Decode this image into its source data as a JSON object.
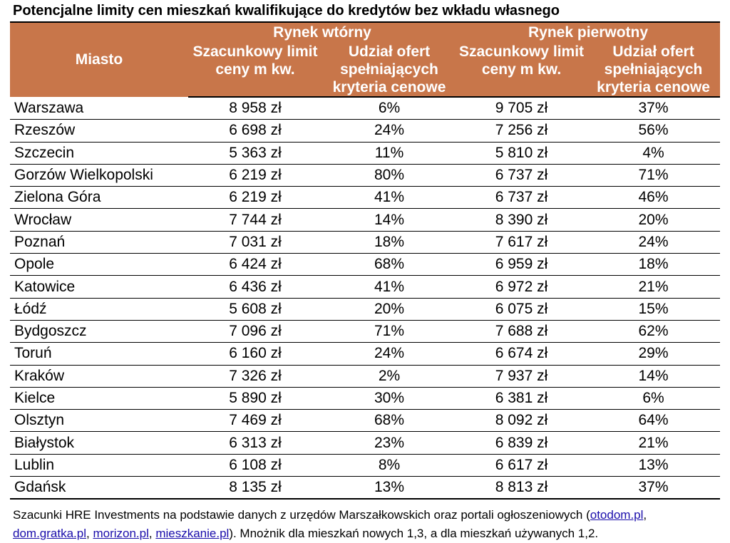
{
  "title": "Potencjalne limity cen mieszkań kwalifikujące do kredytów bez wkładu własnego",
  "header": {
    "city": "Miasto",
    "secondary_market": "Rynek wtórny",
    "primary_market": "Rynek pierwotny",
    "price_limit": "Szacunkowy limit ceny m kw.",
    "share_offers": "Udział ofert spełniających kryteria cenowe"
  },
  "chart_data": {
    "type": "table",
    "title": "Potencjalne limity cen mieszkań kwalifikujące do kredytów bez wkładu własnego",
    "columns": [
      "Miasto",
      "Rynek wtórny – Szacunkowy limit ceny m kw.",
      "Rynek wtórny – Udział ofert spełniających kryteria cenowe",
      "Rynek pierwotny – Szacunkowy limit ceny m kw.",
      "Rynek pierwotny – Udział ofert spełniających kryteria cenowe"
    ],
    "rows": [
      [
        "Warszawa",
        "8 958 zł",
        "6%",
        "9 705 zł",
        "37%"
      ],
      [
        "Rzeszów",
        "6 698 zł",
        "24%",
        "7 256 zł",
        "56%"
      ],
      [
        "Szczecin",
        "5 363 zł",
        "11%",
        "5 810 zł",
        "4%"
      ],
      [
        "Gorzów Wielkopolski",
        "6 219 zł",
        "80%",
        "6 737 zł",
        "71%"
      ],
      [
        "Zielona Góra",
        "6 219 zł",
        "41%",
        "6 737 zł",
        "46%"
      ],
      [
        "Wrocław",
        "7 744 zł",
        "14%",
        "8 390 zł",
        "20%"
      ],
      [
        "Poznań",
        "7 031 zł",
        "18%",
        "7 617 zł",
        "24%"
      ],
      [
        "Opole",
        "6 424 zł",
        "68%",
        "6 959 zł",
        "18%"
      ],
      [
        "Katowice",
        "6 436 zł",
        "41%",
        "6 972 zł",
        "21%"
      ],
      [
        "Łódź",
        "5 608 zł",
        "20%",
        "6 075 zł",
        "15%"
      ],
      [
        "Bydgoszcz",
        "7 096 zł",
        "71%",
        "7 688 zł",
        "62%"
      ],
      [
        "Toruń",
        "6 160 zł",
        "24%",
        "6 674 zł",
        "29%"
      ],
      [
        "Kraków",
        "7 326 zł",
        "2%",
        "7 937 zł",
        "14%"
      ],
      [
        "Kielce",
        "5 890 zł",
        "30%",
        "6 381 zł",
        "6%"
      ],
      [
        "Olsztyn",
        "7 469 zł",
        "68%",
        "8 092 zł",
        "64%"
      ],
      [
        "Białystok",
        "6 313 zł",
        "23%",
        "6 839 zł",
        "21%"
      ],
      [
        "Lublin",
        "6 108 zł",
        "8%",
        "6 617 zł",
        "13%"
      ],
      [
        "Gdańsk",
        "8 135 zł",
        "13%",
        "8 813 zł",
        "37%"
      ]
    ]
  },
  "footnote": {
    "text1": "Szacunki HRE Investments na podstawie danych z urzędów Marszałkowskich oraz portali ogłoszeniowych (",
    "link1": "otodom.pl",
    "sep1": ", ",
    "link2": "dom.gratka.pl",
    "sep2": ", ",
    "link3": "morizon.pl",
    "sep3": ", ",
    "link4": "mieszkanie.pl",
    "text2": "). Mnożnik dla mieszkań nowych 1,3, a dla mieszkań używanych 1,2."
  },
  "colors": {
    "header_bg": "#c8764a",
    "header_text": "#ffffff",
    "link": "#1a0dab"
  }
}
